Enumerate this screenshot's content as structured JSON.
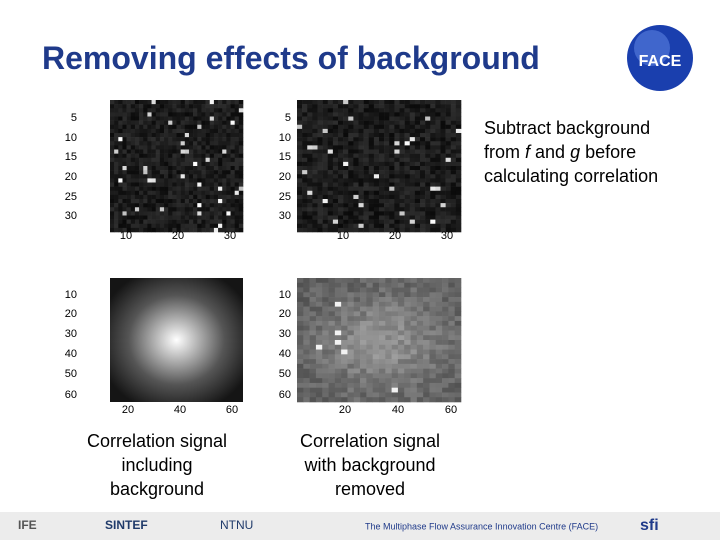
{
  "title": "Removing effects of background",
  "logo": "FACE",
  "note": {
    "line1": "Subtract background",
    "line2": [
      "from ",
      "f",
      " and ",
      "g",
      " before"
    ],
    "line3": "calculating correlation"
  },
  "panels": [
    {
      "yticks": [
        "5",
        "10",
        "15",
        "20",
        "25",
        "30"
      ],
      "xticks": [
        "10",
        "20",
        "30"
      ]
    },
    {
      "yticks": [
        "5",
        "10",
        "15",
        "20",
        "25",
        "30"
      ],
      "xticks": [
        "10",
        "20",
        "30"
      ]
    },
    {
      "yticks": [
        "10",
        "20",
        "30",
        "40",
        "50",
        "60"
      ],
      "xticks": [
        "20",
        "40",
        "60"
      ]
    },
    {
      "yticks": [
        "10",
        "20",
        "30",
        "40",
        "50",
        "60"
      ],
      "xticks": [
        "20",
        "40",
        "60"
      ]
    }
  ],
  "captions": [
    [
      "Correlation signal",
      "including",
      "background"
    ],
    [
      "Correlation signal",
      "with background",
      "removed"
    ]
  ],
  "footer": {
    "left": "IFE",
    "sintef": "SINTEF",
    "ntnu": "NTNU",
    "center": "The Multiphase Flow Assurance Innovation Centre (FACE)",
    "right": "sfi"
  }
}
